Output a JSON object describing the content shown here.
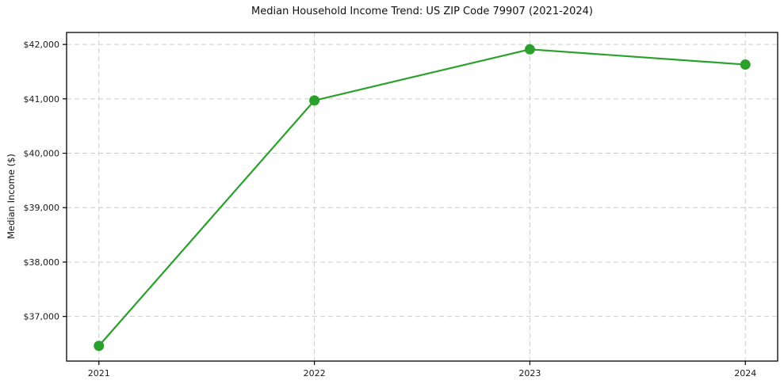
{
  "chart_data": {
    "type": "line",
    "title": "Median Household Income Trend: US ZIP Code 79907 (2021-2024)",
    "xlabel": "",
    "ylabel": "Median Income ($)",
    "x": [
      2021,
      2022,
      2023,
      2024
    ],
    "xtick_labels": [
      "2021",
      "2022",
      "2023",
      "2024"
    ],
    "values": [
      36460,
      40970,
      41910,
      41630
    ],
    "series_name": "Median Household Income",
    "ytick_values": [
      37000,
      38000,
      39000,
      40000,
      41000,
      42000
    ],
    "ytick_labels": [
      "$37,000",
      "$38,000",
      "$39,000",
      "$40,000",
      "$41,000",
      "$42,000"
    ],
    "xlim": [
      2020.85,
      2024.15
    ],
    "ylim": [
      36180,
      42220
    ],
    "grid": true,
    "grid_style": "dashed",
    "legend": "none",
    "colors": {
      "line": "#2ca02c",
      "marker": "#2ca02c",
      "grid": "#cccccc",
      "axis": "#000000",
      "text": "#1a1a1a",
      "background": "#ffffff"
    }
  }
}
